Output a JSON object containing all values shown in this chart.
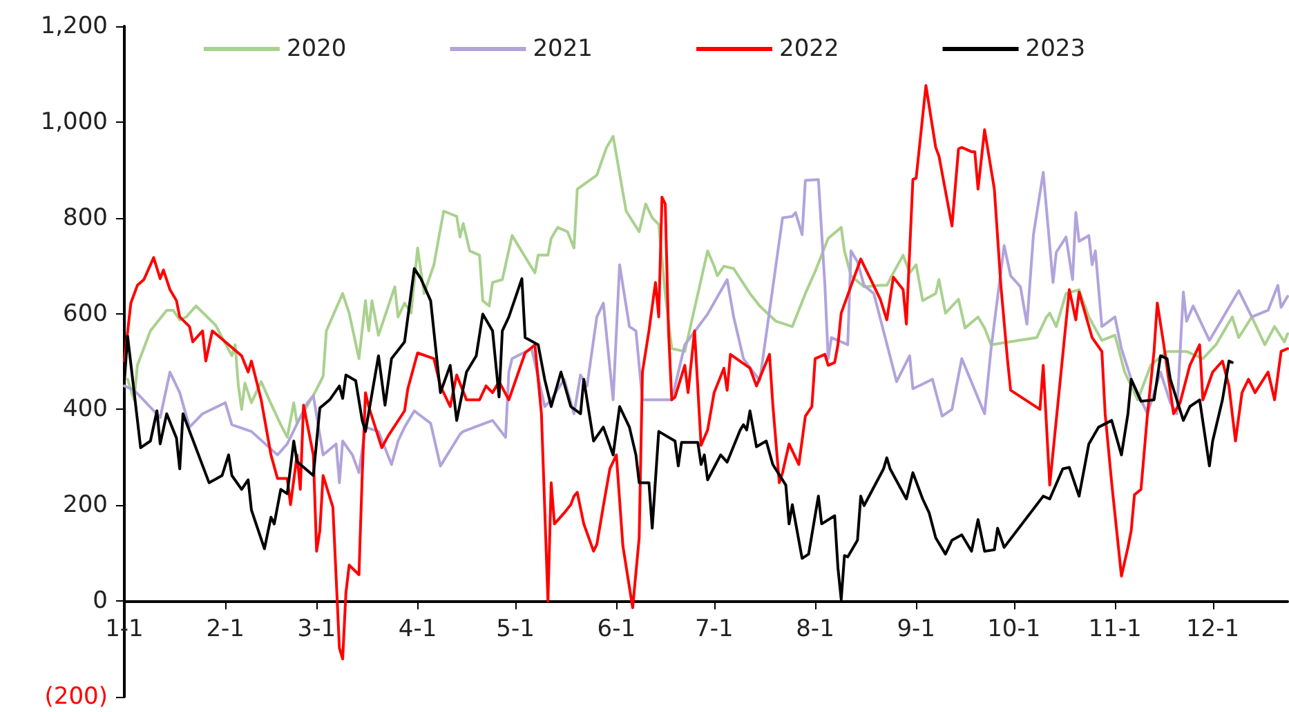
{
  "chart_data": {
    "type": "line",
    "legend": "top",
    "grid": false,
    "marker": "none",
    "line_style": "solid",
    "xlim": [
      "--01-01",
      "--12-24"
    ],
    "ylim": [
      -200,
      1200
    ],
    "xticks": [
      {
        "value": "--01-01",
        "label": "1-1"
      },
      {
        "value": "--02-01",
        "label": "2-1"
      },
      {
        "value": "--03-01",
        "label": "3-1"
      },
      {
        "value": "--04-01",
        "label": "4-1"
      },
      {
        "value": "--05-01",
        "label": "5-1"
      },
      {
        "value": "--06-01",
        "label": "6-1"
      },
      {
        "value": "--07-01",
        "label": "7-1"
      },
      {
        "value": "--08-01",
        "label": "8-1"
      },
      {
        "value": "--09-01",
        "label": "9-1"
      },
      {
        "value": "--10-01",
        "label": "10-1"
      },
      {
        "value": "--11-01",
        "label": "11-1"
      },
      {
        "value": "--12-01",
        "label": "12-1"
      }
    ],
    "yticks": [
      {
        "value": -200,
        "label": "(200)"
      },
      0,
      {
        "value": 200,
        "label": "200"
      },
      {
        "value": 400,
        "label": "400"
      },
      {
        "value": 600,
        "label": "600"
      },
      {
        "value": 800,
        "label": "800"
      },
      {
        "value": 1000,
        "label": "1,000"
      },
      {
        "value": 1200,
        "label": "1,200"
      }
    ],
    "series": [
      {
        "name": "2020",
        "color": "#a9d18e",
        "x": [
          "--01-02",
          "--01-04",
          "--01-05",
          "--01-09",
          "--01-14",
          "--01-16",
          "--01-18",
          "--01-20",
          "--01-23",
          "--01-29",
          "--02-03",
          "--02-04",
          "--02-05",
          "--02-06",
          "--02-07",
          "--02-09",
          "--02-12",
          "--02-15",
          "--02-18",
          "--02-20",
          "--02-22",
          "--02-23",
          "--02-28",
          "--03-03",
          "--03-04",
          "--03-09",
          "--03-11",
          "--03-14",
          "--03-16",
          "--03-17",
          "--03-18",
          "--03-20",
          "--03-25",
          "--03-26",
          "--03-28",
          "--03-30",
          "--04-01",
          "--04-03",
          "--04-06",
          "--04-09",
          "--04-13",
          "--04-14",
          "--04-15",
          "--04-17",
          "--04-20",
          "--04-21",
          "--04-23",
          "--04-24",
          "--04-27",
          "--04-30",
          "--05-07",
          "--05-08",
          "--05-11",
          "--05-12",
          "--05-14",
          "--05-17",
          "--05-19",
          "--05-20",
          "--05-26",
          "--05-29",
          "--05-31",
          "--06-04",
          "--06-08",
          "--06-10",
          "--06-12",
          "--06-14",
          "--06-16",
          "--06-18",
          "--06-22",
          "--06-29",
          "--07-01",
          "--07-02",
          "--07-04",
          "--07-07",
          "--07-12",
          "--07-15",
          "--07-20",
          "--07-25",
          "--07-29",
          "--08-01",
          "--08-05",
          "--08-09",
          "--08-10",
          "--08-12",
          "--08-16",
          "--08-21",
          "--08-23",
          "--08-25",
          "--08-28",
          "--08-30",
          "--09-01",
          "--09-03",
          "--09-07",
          "--09-08",
          "--09-10",
          "--09-14",
          "--09-16",
          "--09-20",
          "--09-22",
          "--09-24",
          "--10-08",
          "--10-11",
          "--10-12",
          "--10-14",
          "--10-17",
          "--10-21",
          "--10-24",
          "--10-28",
          "--11-01",
          "--11-04",
          "--11-08",
          "--11-12",
          "--11-17",
          "--11-23",
          "--11-28",
          "--12-02",
          "--12-07",
          "--12-09",
          "--12-13",
          "--12-17",
          "--12-20",
          "--12-23",
          "--12-24"
        ],
        "values": [
          463,
          420,
          492,
          564,
          607,
          607,
          587,
          593,
          616,
          576,
          512,
          535,
          449,
          400,
          455,
          414,
          458,
          412,
          368,
          342,
          414,
          371,
          429,
          469,
          564,
          642,
          601,
          506,
          627,
          564,
          627,
          555,
          656,
          593,
          622,
          601,
          737,
          642,
          702,
          814,
          803,
          760,
          788,
          731,
          722,
          627,
          616,
          665,
          671,
          763,
          685,
          722,
          722,
          757,
          780,
          771,
          737,
          860,
          889,
          947,
          970,
          814,
          771,
          829,
          800,
          786,
          642,
          527,
          521,
          731,
          699,
          679,
          699,
          694,
          642,
          616,
          584,
          573,
          642,
          688,
          757,
          780,
          731,
          679,
          656,
          659,
          659,
          685,
          722,
          685,
          702,
          627,
          642,
          671,
          601,
          630,
          570,
          593,
          570,
          535,
          550,
          593,
          601,
          573,
          642,
          650,
          593,
          544,
          555,
          478,
          420,
          492,
          521,
          521,
          506,
          535,
          593,
          550,
          593,
          535,
          573,
          541,
          558
        ]
      },
      {
        "name": "2021",
        "color": "#b1a3db",
        "x": [
          "--01-01",
          "--01-04",
          "--01-06",
          "--01-12",
          "--01-15",
          "--01-18",
          "--01-21",
          "--01-25",
          "--02-01",
          "--02-03",
          "--02-09",
          "--02-17",
          "--02-20",
          "--02-26",
          "--02-28",
          "--03-03",
          "--03-07",
          "--03-08",
          "--03-09",
          "--03-12",
          "--03-14",
          "--03-16",
          "--03-20",
          "--03-24",
          "--03-26",
          "--03-28",
          "--03-31",
          "--04-05",
          "--04-08",
          "--04-14",
          "--04-15",
          "--04-24",
          "--04-28",
          "--04-29",
          "--04-30",
          "--05-06",
          "--05-10",
          "--05-12",
          "--05-16",
          "--05-19",
          "--05-21",
          "--05-23",
          "--05-26",
          "--05-28",
          "--05-31",
          "--06-02",
          "--06-05",
          "--06-07",
          "--06-09",
          "--06-13",
          "--06-18",
          "--06-22",
          "--06-29",
          "--07-05",
          "--07-07",
          "--07-10",
          "--07-15",
          "--07-22",
          "--07-25",
          "--07-26",
          "--07-28",
          "--07-29",
          "--08-02",
          "--08-04",
          "--08-05",
          "--08-06",
          "--08-11",
          "--08-12",
          "--08-14",
          "--08-16",
          "--08-19",
          "--08-26",
          "--08-30",
          "--08-31",
          "--09-06",
          "--09-09",
          "--09-12",
          "--09-15",
          "--09-22",
          "--09-24",
          "--09-28",
          "--09-30",
          "--10-03",
          "--10-05",
          "--10-07",
          "--10-10",
          "--10-13",
          "--10-14",
          "--10-17",
          "--10-19",
          "--10-20",
          "--10-21",
          "--10-24",
          "--10-25",
          "--10-26",
          "--10-28",
          "--11-01",
          "--11-03",
          "--11-06",
          "--11-11",
          "--11-15",
          "--11-18",
          "--11-20",
          "--11-22",
          "--11-23",
          "--11-25",
          "--11-30",
          "--12-09",
          "--12-13",
          "--12-18",
          "--12-21",
          "--12-22",
          "--12-24"
        ],
        "values": [
          449,
          440,
          426,
          383,
          478,
          435,
          363,
          391,
          414,
          368,
          354,
          305,
          328,
          412,
          429,
          305,
          328,
          247,
          334,
          305,
          268,
          363,
          354,
          285,
          334,
          363,
          397,
          371,
          282,
          348,
          354,
          377,
          342,
          478,
          506,
          527,
          406,
          420,
          463,
          391,
          472,
          449,
          593,
          622,
          420,
          702,
          573,
          564,
          420,
          420,
          420,
          535,
          599,
          671,
          593,
          506,
          460,
          800,
          803,
          811,
          765,
          878,
          880,
          659,
          506,
          550,
          535,
          731,
          708,
          659,
          642,
          458,
          512,
          443,
          463,
          386,
          400,
          506,
          391,
          527,
          742,
          679,
          656,
          578,
          765,
          895,
          665,
          728,
          760,
          671,
          811,
          751,
          763,
          702,
          731,
          573,
          593,
          527,
          463,
          391,
          478,
          414,
          391,
          645,
          584,
          616,
          544,
          648,
          593,
          607,
          659,
          613,
          636
        ]
      },
      {
        "name": "2022",
        "color": "#ff0000",
        "x": [
          "--01-01",
          "--01-03",
          "--01-05",
          "--01-07",
          "--01-10",
          "--01-12",
          "--01-13",
          "--01-15",
          "--01-17",
          "--01-18",
          "--01-21",
          "--01-22",
          "--01-25",
          "--01-26",
          "--01-28",
          "--02-06",
          "--02-08",
          "--02-09",
          "--02-12",
          "--02-15",
          "--02-17",
          "--02-20",
          "--02-21",
          "--02-23",
          "--02-24",
          "--02-25",
          "--02-28",
          "--03-01",
          "--03-02",
          "--03-03",
          "--03-06",
          "--03-08",
          "--03-09",
          "--03-10",
          "--03-11",
          "--03-14",
          "--03-15",
          "--03-16",
          "--03-17",
          "--03-21",
          "--03-23",
          "--03-28",
          "--03-29",
          "--04-01",
          "--04-06",
          "--04-08",
          "--04-11",
          "--04-13",
          "--04-16",
          "--04-20",
          "--04-22",
          "--04-24",
          "--04-26",
          "--04-29",
          "--05-04",
          "--05-07",
          "--05-09",
          "--05-11",
          "--05-12",
          "--05-13",
          "--05-16",
          "--05-18",
          "--05-19",
          "--05-20",
          "--05-22",
          "--05-25",
          "--05-26",
          "--05-28",
          "--05-30",
          "--06-01",
          "--06-03",
          "--06-06",
          "--06-08",
          "--06-09",
          "--06-11",
          "--06-13",
          "--06-14",
          "--06-15",
          "--06-16",
          "--06-17",
          "--06-18",
          "--06-19",
          "--06-22",
          "--06-23",
          "--06-25",
          "--06-27",
          "--06-29",
          "--07-01",
          "--07-04",
          "--07-05",
          "--07-06",
          "--07-12",
          "--07-14",
          "--07-18",
          "--07-19",
          "--07-21",
          "--07-22",
          "--07-24",
          "--07-27",
          "--07-29",
          "--07-31",
          "--08-01",
          "--08-04",
          "--08-05",
          "--08-07",
          "--08-08",
          "--08-09",
          "--08-15",
          "--08-21",
          "--08-23",
          "--08-25",
          "--08-28",
          "--08-29",
          "--08-31",
          "--09-01",
          "--09-04",
          "--09-07",
          "--09-08",
          "--09-12",
          "--09-14",
          "--09-15",
          "--09-18",
          "--09-19",
          "--09-20",
          "--09-22",
          "--09-25",
          "--09-27",
          "--09-29",
          "--09-30",
          "--10-09",
          "--10-10",
          "--10-12",
          "--10-18",
          "--10-20",
          "--10-21",
          "--10-25",
          "--10-28",
          "--10-29",
          "--10-31",
          "--11-03",
          "--11-05",
          "--11-06",
          "--11-07",
          "--11-09",
          "--11-11",
          "--11-13",
          "--11-14",
          "--11-16",
          "--11-19",
          "--11-21",
          "--11-24",
          "--11-27",
          "--11-28",
          "--12-01",
          "--12-04",
          "--12-06",
          "--12-08",
          "--12-10",
          "--12-12",
          "--12-14",
          "--12-18",
          "--12-20",
          "--12-22",
          "--12-24"
        ],
        "values": [
          501,
          622,
          659,
          671,
          717,
          673,
          691,
          650,
          627,
          593,
          573,
          541,
          564,
          501,
          564,
          512,
          478,
          501,
          420,
          305,
          256,
          256,
          201,
          305,
          233,
          409,
          305,
          104,
          147,
          262,
          196,
          -98,
          -121,
          17,
          75,
          55,
          262,
          435,
          406,
          320,
          345,
          397,
          443,
          518,
          506,
          449,
          406,
          472,
          420,
          420,
          449,
          435,
          458,
          420,
          518,
          535,
          391,
          0,
          247,
          161,
          184,
          201,
          219,
          227,
          161,
          104,
          118,
          198,
          276,
          305,
          115,
          -14,
          132,
          478,
          564,
          665,
          593,
          843,
          829,
          564,
          420,
          426,
          492,
          435,
          564,
          325,
          357,
          435,
          486,
          440,
          515,
          486,
          449,
          515,
          411,
          247,
          268,
          328,
          285,
          386,
          406,
          506,
          515,
          492,
          498,
          535,
          601,
          714,
          630,
          587,
          676,
          650,
          578,
          880,
          883,
          1076,
          947,
          929,
          783,
          944,
          947,
          938,
          938,
          860,
          984,
          860,
          659,
          506,
          440,
          400,
          492,
          242,
          650,
          587,
          645,
          550,
          521,
          391,
          247,
          52,
          112,
          147,
          222,
          233,
          391,
          521,
          622,
          535,
          391,
          414,
          492,
          535,
          420,
          478,
          501,
          449,
          334,
          435,
          463,
          435,
          478,
          420,
          521,
          527
        ]
      },
      {
        "name": "2023",
        "color": "#000000",
        "x": [
          "--01-01",
          "--01-02",
          "--01-06",
          "--01-09",
          "--01-11",
          "--01-12",
          "--01-14",
          "--01-17",
          "--01-18",
          "--01-19",
          "--01-27",
          "--01-31",
          "--02-02",
          "--02-03",
          "--02-06",
          "--02-08",
          "--02-09",
          "--02-13",
          "--02-15",
          "--02-16",
          "--02-18",
          "--02-20",
          "--02-22",
          "--02-23",
          "--02-28",
          "--03-02",
          "--03-05",
          "--03-08",
          "--03-09",
          "--03-10",
          "--03-13",
          "--03-15",
          "--03-16",
          "--03-20",
          "--03-22",
          "--03-24",
          "--03-28",
          "--03-31",
          "--04-02",
          "--04-05",
          "--04-08",
          "--04-11",
          "--04-13",
          "--04-16",
          "--04-19",
          "--04-21",
          "--04-24",
          "--04-26",
          "--04-27",
          "--04-29",
          "--05-03",
          "--05-04",
          "--05-08",
          "--05-10",
          "--05-12",
          "--05-15",
          "--05-18",
          "--05-21",
          "--05-22",
          "--05-25",
          "--05-28",
          "--05-31",
          "--06-02",
          "--06-05",
          "--06-07",
          "--06-08",
          "--06-11",
          "--06-12",
          "--06-14",
          "--06-19",
          "--06-20",
          "--06-21",
          "--06-26",
          "--06-27",
          "--06-28",
          "--06-29",
          "--07-03",
          "--07-05",
          "--07-09",
          "--07-10",
          "--07-11",
          "--07-12",
          "--07-14",
          "--07-17",
          "--07-19",
          "--07-23",
          "--07-24",
          "--07-25",
          "--07-28",
          "--07-30",
          "--08-02",
          "--08-03",
          "--08-07",
          "--08-08",
          "--08-09",
          "--08-10",
          "--08-11",
          "--08-14",
          "--08-15",
          "--08-16",
          "--08-22",
          "--08-23",
          "--08-24",
          "--08-29",
          "--08-31",
          "--09-03",
          "--09-05",
          "--09-07",
          "--09-10",
          "--09-12",
          "--09-15",
          "--09-18",
          "--09-20",
          "--09-22",
          "--09-25",
          "--09-26",
          "--09-28",
          "--10-10",
          "--10-12",
          "--10-16",
          "--10-18",
          "--10-21",
          "--10-24",
          "--10-27",
          "--10-31",
          "--11-03",
          "--11-04",
          "--11-05",
          "--11-06",
          "--11-09",
          "--11-13",
          "--11-15",
          "--11-17",
          "--11-18",
          "--11-22",
          "--11-24",
          "--11-27",
          "--11-30",
          "--12-01",
          "--12-04",
          "--12-06",
          "--12-07"
        ],
        "values": [
          458,
          553,
          320,
          334,
          397,
          328,
          391,
          340,
          276,
          391,
          247,
          262,
          305,
          262,
          233,
          253,
          190,
          109,
          175,
          161,
          233,
          224,
          334,
          291,
          262,
          403,
          420,
          449,
          423,
          472,
          460,
          377,
          354,
          512,
          409,
          506,
          541,
          694,
          673,
          627,
          435,
          492,
          377,
          478,
          512,
          599,
          564,
          426,
          564,
          593,
          673,
          550,
          535,
          463,
          406,
          478,
          406,
          391,
          463,
          334,
          363,
          305,
          406,
          363,
          305,
          247,
          247,
          152,
          354,
          334,
          282,
          331,
          331,
          285,
          305,
          253,
          305,
          290,
          357,
          368,
          357,
          397,
          322,
          334,
          285,
          242,
          161,
          201,
          89,
          98,
          219,
          161,
          178,
          69,
          3,
          95,
          92,
          127,
          219,
          199,
          276,
          299,
          276,
          213,
          268,
          213,
          184,
          132,
          98,
          127,
          138,
          104,
          170,
          104,
          107,
          152,
          112,
          219,
          213,
          276,
          279,
          219,
          328,
          363,
          377,
          305,
          348,
          391,
          463,
          417,
          420,
          512,
          506,
          463,
          377,
          406,
          420,
          282,
          334,
          420,
          501,
          498
        ]
      }
    ]
  }
}
